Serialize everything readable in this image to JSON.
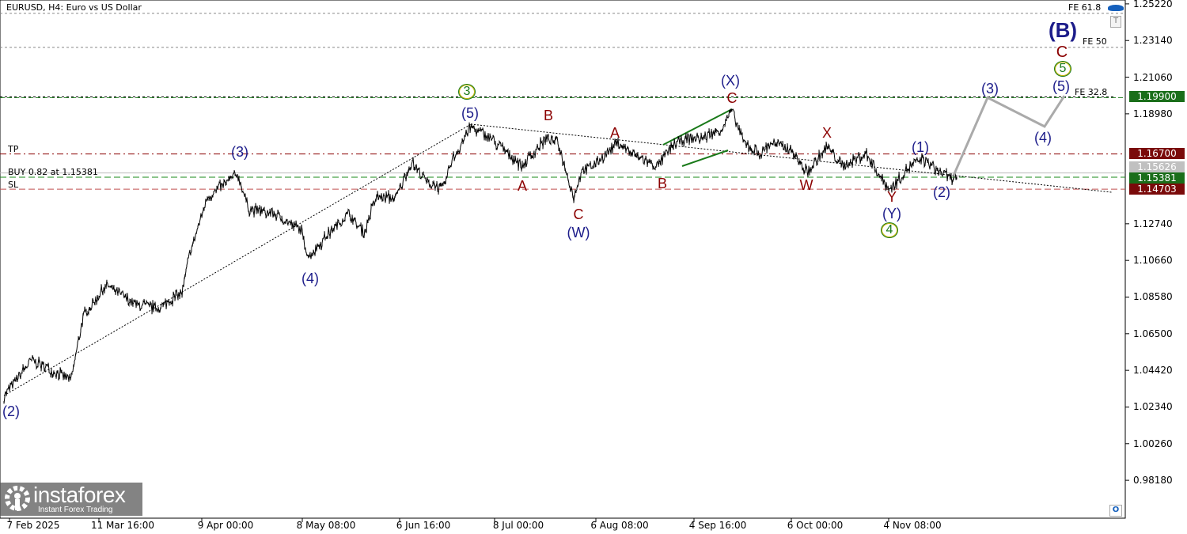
{
  "header": {
    "title": "EURUSD, H4:  Euro vs US Dollar"
  },
  "levels": {
    "tp_label": "TP",
    "buy_label": "BUY 0.82 at 1.15381",
    "sl_label": "SL",
    "fe618": "FE 61.8",
    "fe50": "FE 50",
    "fe328": "FE 32.8"
  },
  "price_tags": {
    "target": "1.19900",
    "tp": "1.16700",
    "current": "1.15626",
    "entry": "1.15381",
    "sl": "1.14703"
  },
  "colors": {
    "navy": "#1c1c8a",
    "red": "#8b0000",
    "green": "#1a7a1a",
    "tag_green": "#1a6e1a",
    "tag_red": "#7a0a0a",
    "projection": "#aaaaaa"
  },
  "price_axis": [
    "1.25220",
    "1.23140",
    "1.21060",
    "1.18980",
    "1.12740",
    "1.10660",
    "1.08580",
    "1.06500",
    "1.04420",
    "1.02340",
    "1.00260",
    "0.98180"
  ],
  "time_axis": [
    "7 Feb 2025",
    "11 Mar 16:00",
    "9 Apr 00:00",
    "8 May 08:00",
    "6 Jun 16:00",
    "8 Jul 00:00",
    "6 Aug 08:00",
    "4 Sep 16:00",
    "6 Oct 00:00",
    "4 Nov 08:00"
  ],
  "waves": {
    "w2_start": "(2)",
    "w3_a": "(3)",
    "w4_a": "(4)",
    "c3": "3",
    "w5_a": "(5)",
    "b1": "B",
    "a1": "A",
    "c1": "C",
    "wW": "(W)",
    "a2": "A",
    "b2": "B",
    "wX": "(X)",
    "c2": "C",
    "x1": "X",
    "w1": "W",
    "w1b": "(1)",
    "y1": "Y",
    "wY": "(Y)",
    "c4": "4",
    "w2b": "(2)",
    "w3b": "(3)",
    "w4b": "(4)",
    "w5b": "(5)",
    "c5": "5",
    "cC": "C",
    "wB": "(B)"
  },
  "logo": {
    "name": "instaforex",
    "tagline": "Instant Forex Trading"
  },
  "buttons": {
    "t": "T",
    "o": "O"
  },
  "chart_data": {
    "type": "line",
    "symbol": "EURUSD",
    "timeframe": "H4",
    "ylim": [
      0.9603,
      1.2544
    ],
    "x_bar_index": [
      5,
      40,
      90,
      105,
      135,
      170,
      200,
      230,
      240,
      262,
      300,
      315,
      345,
      380,
      390,
      420,
      440,
      460,
      475,
      500,
      520,
      540,
      560,
      570,
      595,
      620,
      660,
      690,
      705,
      725,
      735,
      750,
      780,
      800,
      830,
      850,
      865,
      885,
      910,
      925,
      940,
      960,
      975,
      1000,
      1020,
      1045,
      1065,
      1095,
      1110,
      1125,
      1145,
      1165,
      1185,
      1200,
      1210
    ],
    "price": [
      1.0298,
      1.05,
      1.0388,
      1.0747,
      1.0928,
      1.0816,
      1.0793,
      1.0883,
      1.1108,
      1.1422,
      1.1557,
      1.1355,
      1.1332,
      1.1242,
      1.1085,
      1.1242,
      1.1332,
      1.122,
      1.1422,
      1.1422,
      1.1624,
      1.1512,
      1.1467,
      1.1624,
      1.1826,
      1.1759,
      1.1602,
      1.1759,
      1.1736,
      1.1422,
      1.1579,
      1.1602,
      1.1736,
      1.1669,
      1.1602,
      1.1714,
      1.1759,
      1.1759,
      1.1804,
      1.1916,
      1.1736,
      1.1669,
      1.1736,
      1.1691,
      1.1557,
      1.1714,
      1.1602,
      1.1669,
      1.1557,
      1.1467,
      1.1579,
      1.1646,
      1.1579,
      1.1534,
      1.1548
    ],
    "projection": {
      "x_bar_index": [
        1205,
        1248,
        1320,
        1345
      ],
      "price": [
        1.1548,
        1.199,
        1.1826,
        1.2
      ]
    },
    "levels": {
      "fe618": 1.2468,
      "fe50": 1.2275,
      "fe328": 1.199,
      "tp": 1.167,
      "current": 1.15626,
      "entry": 1.15381,
      "sl": 1.14703
    }
  }
}
